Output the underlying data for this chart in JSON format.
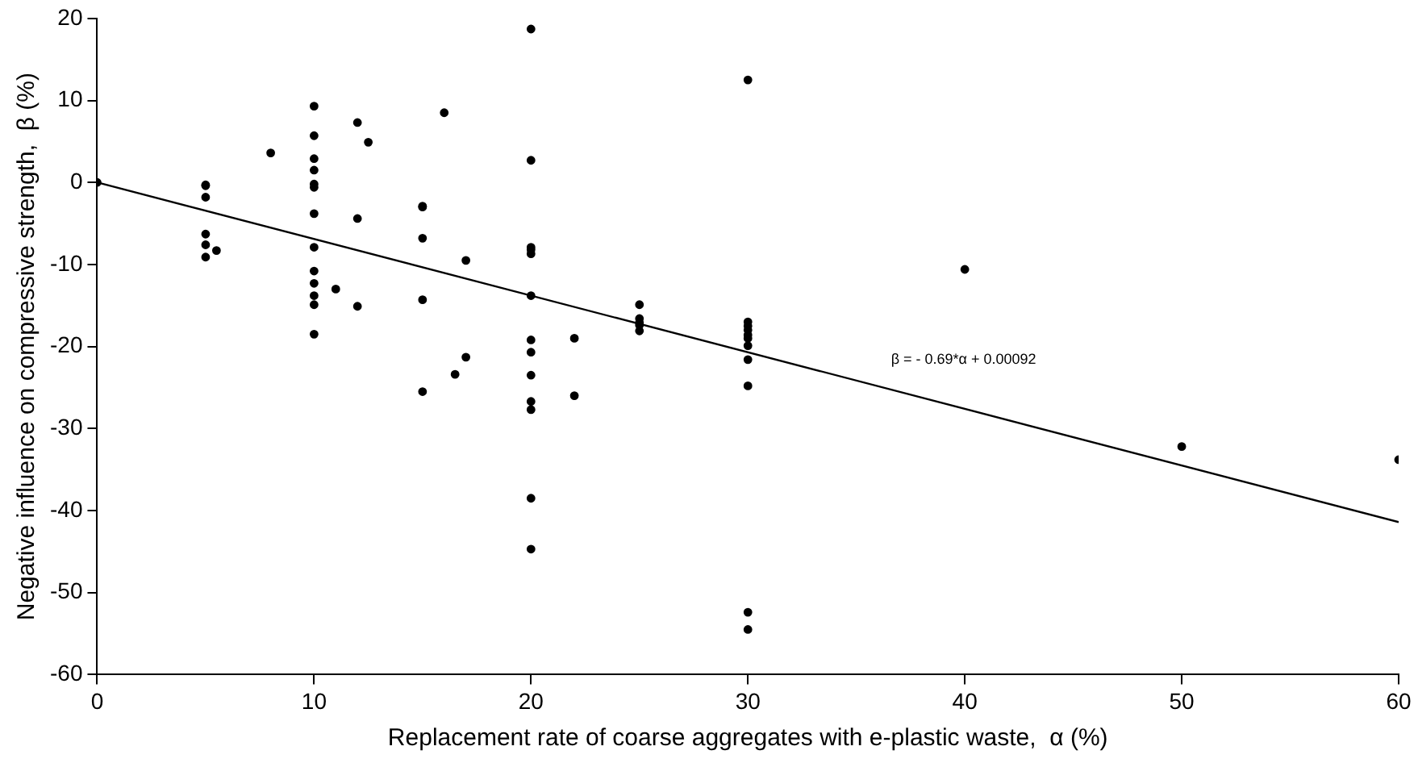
{
  "chart_data": {
    "type": "scatter",
    "xlabel": "Replacement rate of coarse aggregates with e-plastic waste,  α (%)",
    "ylabel": "Negative influence on compressive strength,  β (%)",
    "xlim": [
      0,
      60
    ],
    "xticks": [
      0,
      10,
      20,
      30,
      40,
      50,
      60
    ],
    "ylim": [
      -60,
      20
    ],
    "yticks": [
      -60,
      -50,
      -40,
      -30,
      -20,
      -10,
      0,
      10,
      20
    ],
    "grid": false,
    "legend": false,
    "marker": "circle",
    "annotations": [
      "β = - 0.69*α + 0.00092"
    ],
    "series": [
      {
        "color": "#000000",
        "x": [
          0,
          5,
          5,
          5,
          5,
          5,
          5,
          5.5,
          8,
          10,
          10,
          10,
          10,
          10,
          10,
          10,
          10,
          10,
          10,
          10,
          10,
          10,
          11,
          12,
          12,
          12,
          12.5,
          15,
          15,
          15,
          15,
          15,
          16,
          16.5,
          17,
          17,
          20,
          20,
          20,
          20,
          20,
          20,
          20,
          20,
          20,
          20,
          20,
          20,
          20,
          22,
          22,
          25,
          25,
          25,
          25,
          25,
          30,
          30,
          30,
          30,
          30,
          30,
          30,
          30,
          30,
          30,
          30,
          40,
          50,
          60
        ],
        "values": [
          0,
          -0.3,
          -0.4,
          -1.8,
          -6.3,
          -7.6,
          -9.1,
          -8.3,
          3.6,
          9.3,
          5.7,
          2.9,
          1.5,
          -0.2,
          -0.6,
          -3.8,
          -7.9,
          -10.8,
          -12.3,
          -13.8,
          -14.9,
          -18.5,
          -13.0,
          7.3,
          -4.4,
          -15.1,
          4.9,
          -2.9,
          -3.0,
          -6.8,
          -14.3,
          -25.5,
          8.5,
          -23.4,
          -9.5,
          -21.3,
          18.7,
          2.7,
          -7.9,
          -8.2,
          -8.7,
          -13.8,
          -19.2,
          -20.7,
          -23.5,
          -26.7,
          -27.7,
          -38.5,
          -44.7,
          -19.0,
          -26.0,
          -14.9,
          -16.6,
          -17.1,
          -17.4,
          -18.1,
          12.5,
          -17.0,
          -17.5,
          -18.0,
          -18.6,
          -19.0,
          -19.9,
          -21.6,
          -24.8,
          -52.4,
          -54.5,
          -10.6,
          -32.2,
          -33.8
        ]
      },
      {
        "type": "line",
        "marker": "none",
        "color": "#000000",
        "x": [
          0,
          60
        ],
        "values": [
          0,
          -41.4
        ]
      }
    ]
  }
}
